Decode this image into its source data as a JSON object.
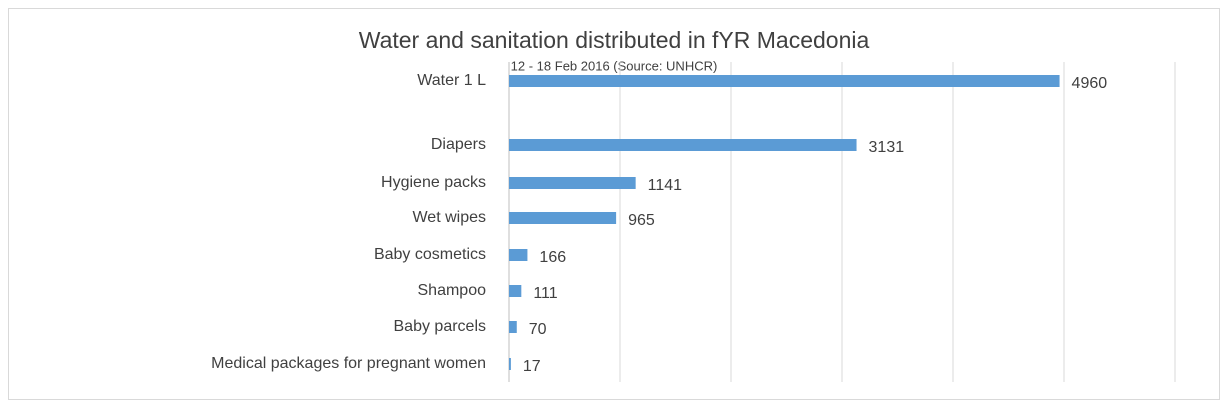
{
  "chart_data": {
    "type": "hbar",
    "title": "Water and sanitation distributed in fYR Macedonia",
    "subtitle": "12 - 18 Feb 2016 (Source: UNHCR)",
    "categories": [
      "Water 1 L",
      "Diapers",
      "Hygiene packs",
      "Wet wipes",
      "Baby cosmetics",
      "Shampoo",
      "Baby parcels",
      "Medical packages for pregnant women"
    ],
    "values": [
      4960,
      3131,
      1141,
      965,
      166,
      111,
      70,
      17
    ],
    "color": "#5b9bd5",
    "xlim": [
      0,
      6000
    ],
    "xticks": [
      0,
      1000,
      2000,
      3000,
      4000,
      5000,
      6000
    ],
    "grid": true
  }
}
